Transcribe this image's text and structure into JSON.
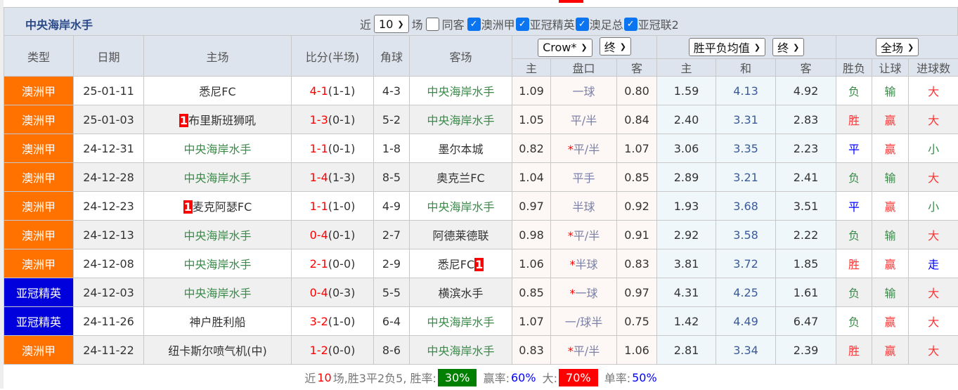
{
  "team_title": "中央海岸水手",
  "filters": {
    "recent_prefix": "近",
    "recent_count": "10",
    "recent_suffix": "场",
    "same_venue": "同客",
    "same_venue_checked": false,
    "leagues": [
      {
        "label": "澳洲甲",
        "checked": true
      },
      {
        "label": "亚冠精英",
        "checked": true
      },
      {
        "label": "澳足总",
        "checked": true
      },
      {
        "label": "亚冠联2",
        "checked": true
      }
    ]
  },
  "headers": {
    "type": "类型",
    "date": "日期",
    "home": "主场",
    "score": "比分(半场)",
    "corner": "角球",
    "away": "客场",
    "company_select": "Crow*",
    "final_select1": "终",
    "odds_select": "胜平负均值",
    "final_select2": "终",
    "period_select": "全场",
    "ah_home": "主",
    "ah_line": "盘口",
    "ah_away": "客",
    "eu_home": "主",
    "eu_draw": "和",
    "eu_away": "客",
    "wl": "胜负",
    "handicap": "让球",
    "goals": "进球数"
  },
  "colors": {
    "league_a": "#ff7200",
    "league_acl": "#0000dd",
    "self_team": "#3b8a4a",
    "win": "#f00",
    "lose": "#3b8a4a",
    "draw": "#00f"
  },
  "rows": [
    {
      "type": "澳洲甲",
      "type_color": "#ff7200",
      "date": "25-01-11",
      "home": "悉尼FC",
      "home_card": "",
      "home_self": false,
      "ft": "4-1",
      "ht": "(1-1)",
      "corner": "4-3",
      "away": "中央海岸水手",
      "away_card": "",
      "away_self": true,
      "ah_h": "1.09",
      "star": "",
      "line": "一球",
      "ah_a": "0.80",
      "eu_h": "1.59",
      "eu_d": "4.13",
      "eu_a": "4.92",
      "wl": "负",
      "hcp": "输",
      "goals": "大"
    },
    {
      "type": "澳洲甲",
      "type_color": "#ff7200",
      "date": "25-01-03",
      "home": "布里斯班狮吼",
      "home_card": "1",
      "home_self": false,
      "ft": "1-3",
      "ht": "(0-1)",
      "corner": "5-2",
      "away": "中央海岸水手",
      "away_card": "",
      "away_self": true,
      "ah_h": "1.05",
      "star": "",
      "line": "平/半",
      "ah_a": "0.84",
      "eu_h": "2.40",
      "eu_d": "3.31",
      "eu_a": "2.83",
      "wl": "胜",
      "hcp": "赢",
      "goals": "大"
    },
    {
      "type": "澳洲甲",
      "type_color": "#ff7200",
      "date": "24-12-31",
      "home": "中央海岸水手",
      "home_card": "",
      "home_self": true,
      "ft": "1-1",
      "ht": "(0-1)",
      "corner": "1-8",
      "away": "墨尔本城",
      "away_card": "",
      "away_self": false,
      "ah_h": "0.82",
      "star": "*",
      "line": "平/半",
      "ah_a": "1.07",
      "eu_h": "3.06",
      "eu_d": "3.35",
      "eu_a": "2.23",
      "wl": "平",
      "hcp": "赢",
      "goals": "小"
    },
    {
      "type": "澳洲甲",
      "type_color": "#ff7200",
      "date": "24-12-28",
      "home": "中央海岸水手",
      "home_card": "",
      "home_self": true,
      "ft": "1-4",
      "ht": "(1-3)",
      "corner": "8-5",
      "away": "奥克兰FC",
      "away_card": "",
      "away_self": false,
      "ah_h": "1.04",
      "star": "",
      "line": "平手",
      "ah_a": "0.85",
      "eu_h": "2.89",
      "eu_d": "3.21",
      "eu_a": "2.41",
      "wl": "负",
      "hcp": "输",
      "goals": "大"
    },
    {
      "type": "澳洲甲",
      "type_color": "#ff7200",
      "date": "24-12-23",
      "home": "麦克阿瑟FC",
      "home_card": "1",
      "home_self": false,
      "ft": "1-1",
      "ht": "(1-0)",
      "corner": "4-9",
      "away": "中央海岸水手",
      "away_card": "",
      "away_self": true,
      "ah_h": "0.97",
      "star": "",
      "line": "半球",
      "ah_a": "0.92",
      "eu_h": "1.93",
      "eu_d": "3.68",
      "eu_a": "3.51",
      "wl": "平",
      "hcp": "赢",
      "goals": "小"
    },
    {
      "type": "澳洲甲",
      "type_color": "#ff7200",
      "date": "24-12-13",
      "home": "中央海岸水手",
      "home_card": "",
      "home_self": true,
      "ft": "0-4",
      "ht": "(0-1)",
      "corner": "2-7",
      "away": "阿德莱德联",
      "away_card": "",
      "away_self": false,
      "ah_h": "0.98",
      "star": "*",
      "line": "平/半",
      "ah_a": "0.91",
      "eu_h": "2.92",
      "eu_d": "3.58",
      "eu_a": "2.22",
      "wl": "负",
      "hcp": "输",
      "goals": "大"
    },
    {
      "type": "澳洲甲",
      "type_color": "#ff7200",
      "date": "24-12-08",
      "home": "中央海岸水手",
      "home_card": "",
      "home_self": true,
      "ft": "2-1",
      "ht": "(0-0)",
      "corner": "2-9",
      "away": "悉尼FC",
      "away_card": "1",
      "away_self": false,
      "ah_h": "1.06",
      "star": "*",
      "line": "半球",
      "ah_a": "0.83",
      "eu_h": "3.81",
      "eu_d": "3.72",
      "eu_a": "1.85",
      "wl": "胜",
      "hcp": "赢",
      "goals": "走"
    },
    {
      "type": "亚冠精英",
      "type_color": "#0000dd",
      "date": "24-12-03",
      "home": "中央海岸水手",
      "home_card": "",
      "home_self": true,
      "ft": "0-4",
      "ht": "(0-3)",
      "corner": "5-5",
      "away": "横滨水手",
      "away_card": "",
      "away_self": false,
      "ah_h": "0.85",
      "star": "*",
      "line": "一球",
      "ah_a": "0.97",
      "eu_h": "4.31",
      "eu_d": "4.25",
      "eu_a": "1.61",
      "wl": "负",
      "hcp": "输",
      "goals": "大"
    },
    {
      "type": "亚冠精英",
      "type_color": "#0000dd",
      "date": "24-11-26",
      "home": "神户胜利船",
      "home_card": "",
      "home_self": false,
      "ft": "3-2",
      "ht": "(1-0)",
      "corner": "6-4",
      "away": "中央海岸水手",
      "away_card": "",
      "away_self": true,
      "ah_h": "1.07",
      "star": "",
      "line": "一/球半",
      "ah_a": "0.75",
      "eu_h": "1.42",
      "eu_d": "4.49",
      "eu_a": "6.47",
      "wl": "负",
      "hcp": "赢",
      "goals": "大"
    },
    {
      "type": "澳洲甲",
      "type_color": "#ff7200",
      "date": "24-11-22",
      "home": "纽卡斯尔喷气机(中)",
      "home_card": "",
      "home_self": false,
      "ft": "1-2",
      "ht": "(0-0)",
      "corner": "8-6",
      "away": "中央海岸水手",
      "away_card": "",
      "away_self": true,
      "ah_h": "0.83",
      "star": "*",
      "line": "平/半",
      "ah_a": "1.06",
      "eu_h": "2.81",
      "eu_d": "3.34",
      "eu_a": "2.39",
      "wl": "胜",
      "hcp": "赢",
      "goals": "大"
    }
  ],
  "summary": {
    "p1": "近",
    "count": "10",
    "p2": "场,胜3平2负5, 胜率:",
    "win_rate": "30%",
    "p3": "赢率:",
    "cover_rate": "60%",
    "p4": "大:",
    "over_rate": "70%",
    "p5": "单率:",
    "odd_rate": "50%"
  }
}
